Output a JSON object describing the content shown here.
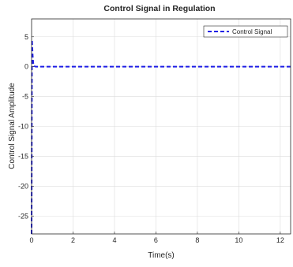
{
  "chart_data": {
    "type": "line",
    "title": "Control Signal in Regulation",
    "xlabel": "Time(s)",
    "ylabel": "Control Signal Amplitude",
    "xlim": [
      0,
      12.5
    ],
    "ylim": [
      -28,
      8
    ],
    "xticks": [
      0,
      2,
      4,
      6,
      8,
      10,
      12
    ],
    "yticks": [
      5,
      0,
      -5,
      -10,
      -15,
      -20,
      -25
    ],
    "grid": true,
    "legend_position": "top-right",
    "series": [
      {
        "name": "Control Signal",
        "color": "#1f1fe6",
        "style": "dashed",
        "x": [
          0,
          0.02,
          0.05,
          0.08,
          0.12,
          0.2,
          0.4,
          1,
          2,
          4,
          6,
          8,
          10,
          12,
          12.5
        ],
        "y": [
          -28,
          4.5,
          2,
          0.6,
          0.1,
          0,
          0,
          0,
          0,
          0,
          0,
          0,
          0,
          0,
          0
        ]
      }
    ]
  }
}
